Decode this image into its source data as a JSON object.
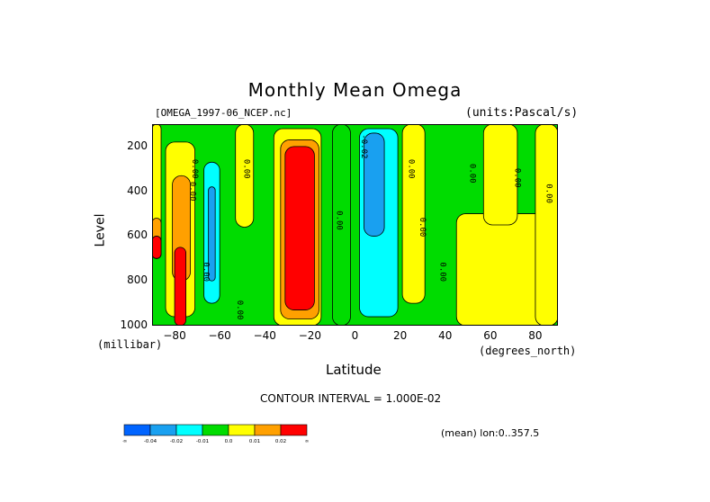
{
  "chart_data": {
    "type": "heatmap",
    "title": "Monthly Mean Omega",
    "file_label": "[OMEGA_1997-06_NCEP.nc]",
    "units_label": "(units:Pascal/s)",
    "xlabel": "Latitude",
    "x_unit": "(degrees_north)",
    "ylabel": "Level",
    "y_unit": "(millibar)",
    "xlim": [
      -90,
      90
    ],
    "ylim": [
      1000,
      100
    ],
    "x_ticks": [
      -80,
      -60,
      -40,
      -20,
      0,
      20,
      40,
      60,
      80
    ],
    "y_ticks": [
      200,
      400,
      600,
      800,
      1000
    ],
    "contour_interval_text": "CONTOUR INTERVAL = 1.000E-02",
    "mean_text": "(mean) lon:0..357.5",
    "contour_line_labels": [
      "0.00",
      "0.00",
      "0.00",
      "0.00",
      "0.00",
      "0.00",
      "0.00",
      "0.00",
      "0.00",
      "0.00",
      "0.00",
      "0.00",
      "-0.02"
    ],
    "legend": {
      "labels": [
        "-∞",
        "-0.04",
        "-0.02",
        "-0.01",
        "0.0",
        "0.01",
        "0.02",
        "∞"
      ],
      "colors": [
        "#0064ff",
        "#19a0f0",
        "#00ffff",
        "#00dc00",
        "#ffff00",
        "#ffa000",
        "#ff0000"
      ]
    },
    "regions": [
      {
        "value_range": "0.0 to 0.01",
        "lat": [
          -90,
          -86
        ],
        "level": [
          100,
          700
        ],
        "color": "#ffff00"
      },
      {
        "value_range": "0.01 to 0.02",
        "lat": [
          -90,
          -86
        ],
        "level": [
          520,
          700
        ],
        "color": "#ffa000"
      },
      {
        "value_range": "> 0.02",
        "lat": [
          -90,
          -86
        ],
        "level": [
          600,
          700
        ],
        "color": "#ff0000"
      },
      {
        "value_range": "0.0 to 0.01",
        "lat": [
          -84,
          -71
        ],
        "level": [
          180,
          960
        ],
        "color": "#ffff00"
      },
      {
        "value_range": "0.01 to 0.02",
        "lat": [
          -81,
          -73
        ],
        "level": [
          330,
          800
        ],
        "color": "#ffa000"
      },
      {
        "value_range": "> 0.02",
        "lat": [
          -80,
          -75
        ],
        "level": [
          650,
          1000
        ],
        "color": "#ff0000"
      },
      {
        "value_range": "-0.02 to -0.01",
        "lat": [
          -67,
          -60
        ],
        "level": [
          270,
          900
        ],
        "color": "#00ffff"
      },
      {
        "value_range": "-0.04 to -0.02",
        "lat": [
          -65,
          -62
        ],
        "level": [
          380,
          800
        ],
        "color": "#19a0f0"
      },
      {
        "value_range": "0.0 to 0.01",
        "lat": [
          -53,
          -45
        ],
        "level": [
          100,
          560
        ],
        "color": "#ffff00"
      },
      {
        "value_range": "0.0 to 0.01",
        "lat": [
          -36,
          -15
        ],
        "level": [
          120,
          1000
        ],
        "color": "#ffff00"
      },
      {
        "value_range": "0.01 to 0.02",
        "lat": [
          -33,
          -16
        ],
        "level": [
          170,
          970
        ],
        "color": "#ffa000"
      },
      {
        "value_range": "> 0.02",
        "lat": [
          -31,
          -18
        ],
        "level": [
          200,
          930
        ],
        "color": "#ff0000"
      },
      {
        "value_range": "-0.01 to 0.0",
        "lat": [
          -10,
          -2
        ],
        "level": [
          100,
          1000
        ],
        "color": "#00dc00"
      },
      {
        "value_range": "-0.02 to -0.01",
        "lat": [
          2,
          19
        ],
        "level": [
          120,
          960
        ],
        "color": "#00ffff"
      },
      {
        "value_range": "-0.04 to -0.02",
        "lat": [
          4,
          13
        ],
        "level": [
          140,
          600
        ],
        "color": "#19a0f0"
      },
      {
        "value_range": "0.0 to 0.01",
        "lat": [
          21,
          31
        ],
        "level": [
          100,
          900
        ],
        "color": "#ffff00"
      },
      {
        "value_range": "0.0 to 0.01",
        "lat": [
          45,
          90
        ],
        "level": [
          500,
          1000
        ],
        "color": "#ffff00"
      },
      {
        "value_range": "0.0 to 0.01",
        "lat": [
          57,
          72
        ],
        "level": [
          100,
          550
        ],
        "color": "#ffff00"
      },
      {
        "value_range": "0.0 to 0.01",
        "lat": [
          80,
          90
        ],
        "level": [
          100,
          1000
        ],
        "color": "#ffff00"
      }
    ],
    "background_color": "#00dc00",
    "grid": false
  }
}
